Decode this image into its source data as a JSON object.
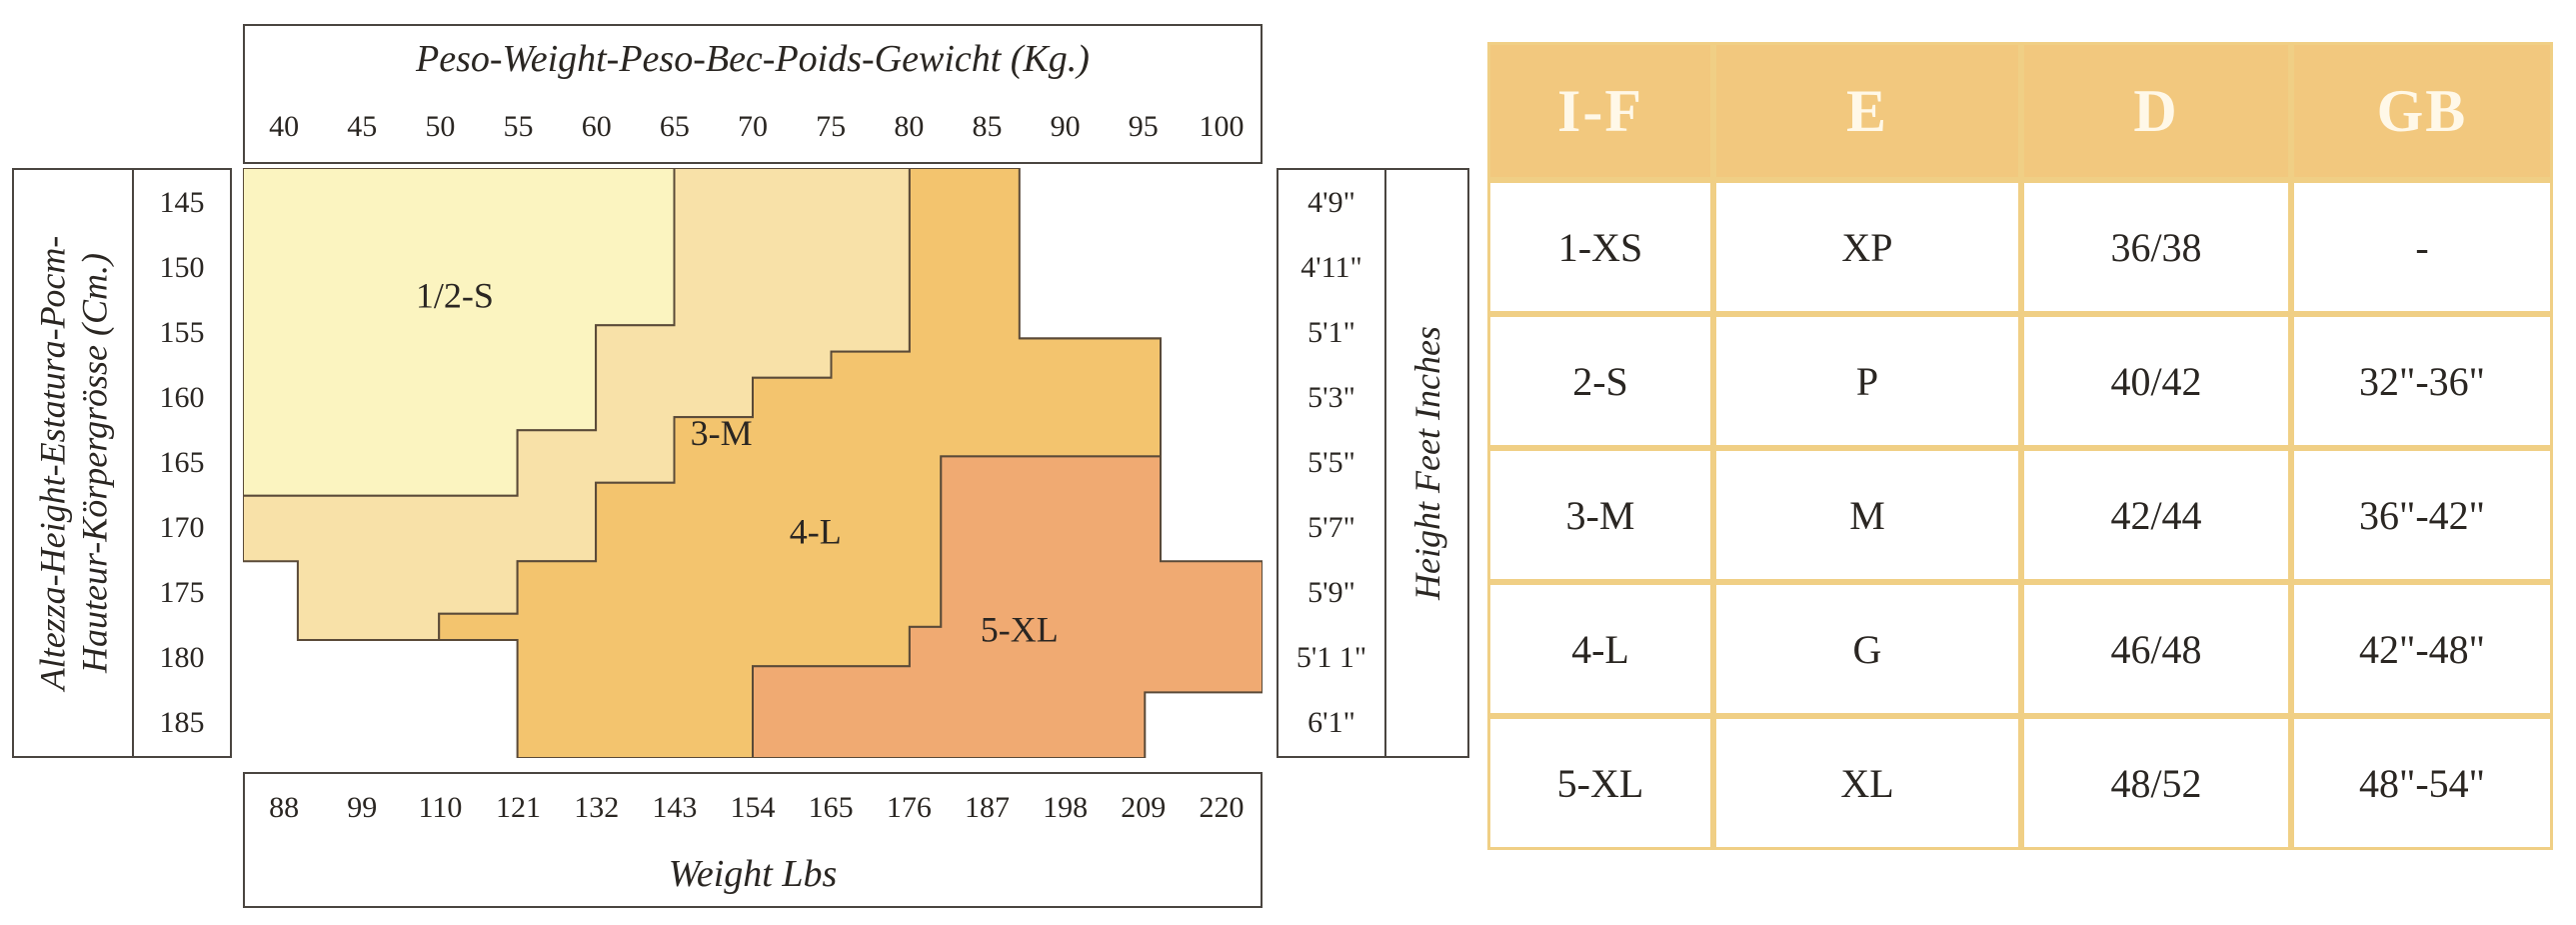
{
  "top_axis": {
    "title": "Peso-Weight-Peso-Bec-Poids-Gewicht (Kg.)",
    "ticks": [
      "40",
      "45",
      "50",
      "55",
      "60",
      "65",
      "70",
      "75",
      "80",
      "85",
      "90",
      "95",
      "100"
    ]
  },
  "bottom_axis": {
    "title": "Weight Lbs",
    "ticks": [
      "88",
      "99",
      "110",
      "121",
      "132",
      "143",
      "154",
      "165",
      "176",
      "187",
      "198",
      "209",
      "220"
    ]
  },
  "left_axis": {
    "title_line1": "Altezza-Height-Estatura-Рост-",
    "title_line2": "Hauteur-Körpergrösse (Cm.)",
    "ticks": [
      "145",
      "150",
      "155",
      "160",
      "165",
      "170",
      "175",
      "180",
      "185"
    ]
  },
  "right_axis": {
    "title": "Height Feet Inches",
    "ticks": [
      "4'9\"",
      "4'11\"",
      "5'1\"",
      "5'3\"",
      "5'5\"",
      "5'7\"",
      "5'9\"",
      "5'1 1\"",
      "6'1\""
    ]
  },
  "chart_data": {
    "type": "heatmap",
    "x_kg_range": [
      37.5,
      102.5
    ],
    "y_cm_range": [
      142.5,
      187.5
    ],
    "regions": [
      {
        "label": "1/2-S",
        "color": "#fbf4c0",
        "polygon": [
          [
            37.5,
            142.5
          ],
          [
            65,
            142.5
          ],
          [
            65,
            154.5
          ],
          [
            60,
            154.5
          ],
          [
            60,
            162.5
          ],
          [
            55,
            162.5
          ],
          [
            55,
            167.5
          ],
          [
            37.5,
            167.5
          ]
        ]
      },
      {
        "label": "3-M",
        "color": "#f8e1a8",
        "polygon": [
          [
            65,
            142.5
          ],
          [
            80,
            142.5
          ],
          [
            80,
            156.5
          ],
          [
            75,
            156.5
          ],
          [
            75,
            158.5
          ],
          [
            70,
            158.5
          ],
          [
            70,
            161.5
          ],
          [
            65,
            161.5
          ],
          [
            65,
            166.5
          ],
          [
            60,
            166.5
          ],
          [
            60,
            172.5
          ],
          [
            55,
            172.5
          ],
          [
            55,
            176.5
          ],
          [
            50,
            176.5
          ],
          [
            50,
            178.5
          ],
          [
            41,
            178.5
          ],
          [
            41,
            172.5
          ],
          [
            37.5,
            172.5
          ],
          [
            37.5,
            167.5
          ],
          [
            55,
            167.5
          ],
          [
            55,
            162.5
          ],
          [
            60,
            162.5
          ],
          [
            60,
            154.5
          ],
          [
            65,
            154.5
          ]
        ]
      },
      {
        "label": "4-L",
        "color": "#f3c46e",
        "polygon": [
          [
            80,
            142.5
          ],
          [
            87,
            142.5
          ],
          [
            87,
            155.5
          ],
          [
            96,
            155.5
          ],
          [
            96,
            164.5
          ],
          [
            82,
            164.5
          ],
          [
            82,
            177.5
          ],
          [
            80,
            177.5
          ],
          [
            80,
            180.5
          ],
          [
            70,
            180.5
          ],
          [
            70,
            187.5
          ],
          [
            55,
            187.5
          ],
          [
            55,
            178.5
          ],
          [
            50,
            178.5
          ],
          [
            50,
            176.5
          ],
          [
            55,
            176.5
          ],
          [
            55,
            172.5
          ],
          [
            60,
            172.5
          ],
          [
            60,
            166.5
          ],
          [
            65,
            166.5
          ],
          [
            65,
            161.5
          ],
          [
            70,
            161.5
          ],
          [
            70,
            158.5
          ],
          [
            75,
            158.5
          ],
          [
            75,
            156.5
          ],
          [
            80,
            156.5
          ]
        ]
      },
      {
        "label": "5-XL",
        "color": "#f0aa72",
        "polygon": [
          [
            87,
            155.5
          ],
          [
            96,
            155.5
          ],
          [
            96,
            172.5
          ],
          [
            102.5,
            172.5
          ],
          [
            102.5,
            182.5
          ],
          [
            95,
            182.5
          ],
          [
            95,
            187.5
          ],
          [
            70,
            187.5
          ],
          [
            70,
            180.5
          ],
          [
            80,
            180.5
          ],
          [
            80,
            177.5
          ],
          [
            82,
            177.5
          ],
          [
            82,
            164.5
          ],
          [
            96,
            164.5
          ],
          [
            96,
            155.5
          ]
        ]
      }
    ],
    "region_labels": [
      {
        "label": "1/2-S",
        "kg": 51,
        "cm": 152.5
      },
      {
        "label": "3-M",
        "kg": 68,
        "cm": 163
      },
      {
        "label": "4-L",
        "kg": 74,
        "cm": 170.5
      },
      {
        "label": "5-XL",
        "kg": 87,
        "cm": 178
      }
    ]
  },
  "table": {
    "headers": [
      "I-F",
      "E",
      "D",
      "GB"
    ],
    "rows": [
      [
        "1-XS",
        "XP",
        "36/38",
        "-"
      ],
      [
        "2-S",
        "P",
        "40/42",
        "32\"-36\""
      ],
      [
        "3-M",
        "M",
        "42/44",
        "36\"-42\""
      ],
      [
        "4-L",
        "G",
        "46/48",
        "42\"-48\""
      ],
      [
        "5-XL",
        "XL",
        "48/52",
        "48\"-54\""
      ]
    ],
    "header_color": "#f2c87e",
    "border_color": "#f0cf85"
  }
}
